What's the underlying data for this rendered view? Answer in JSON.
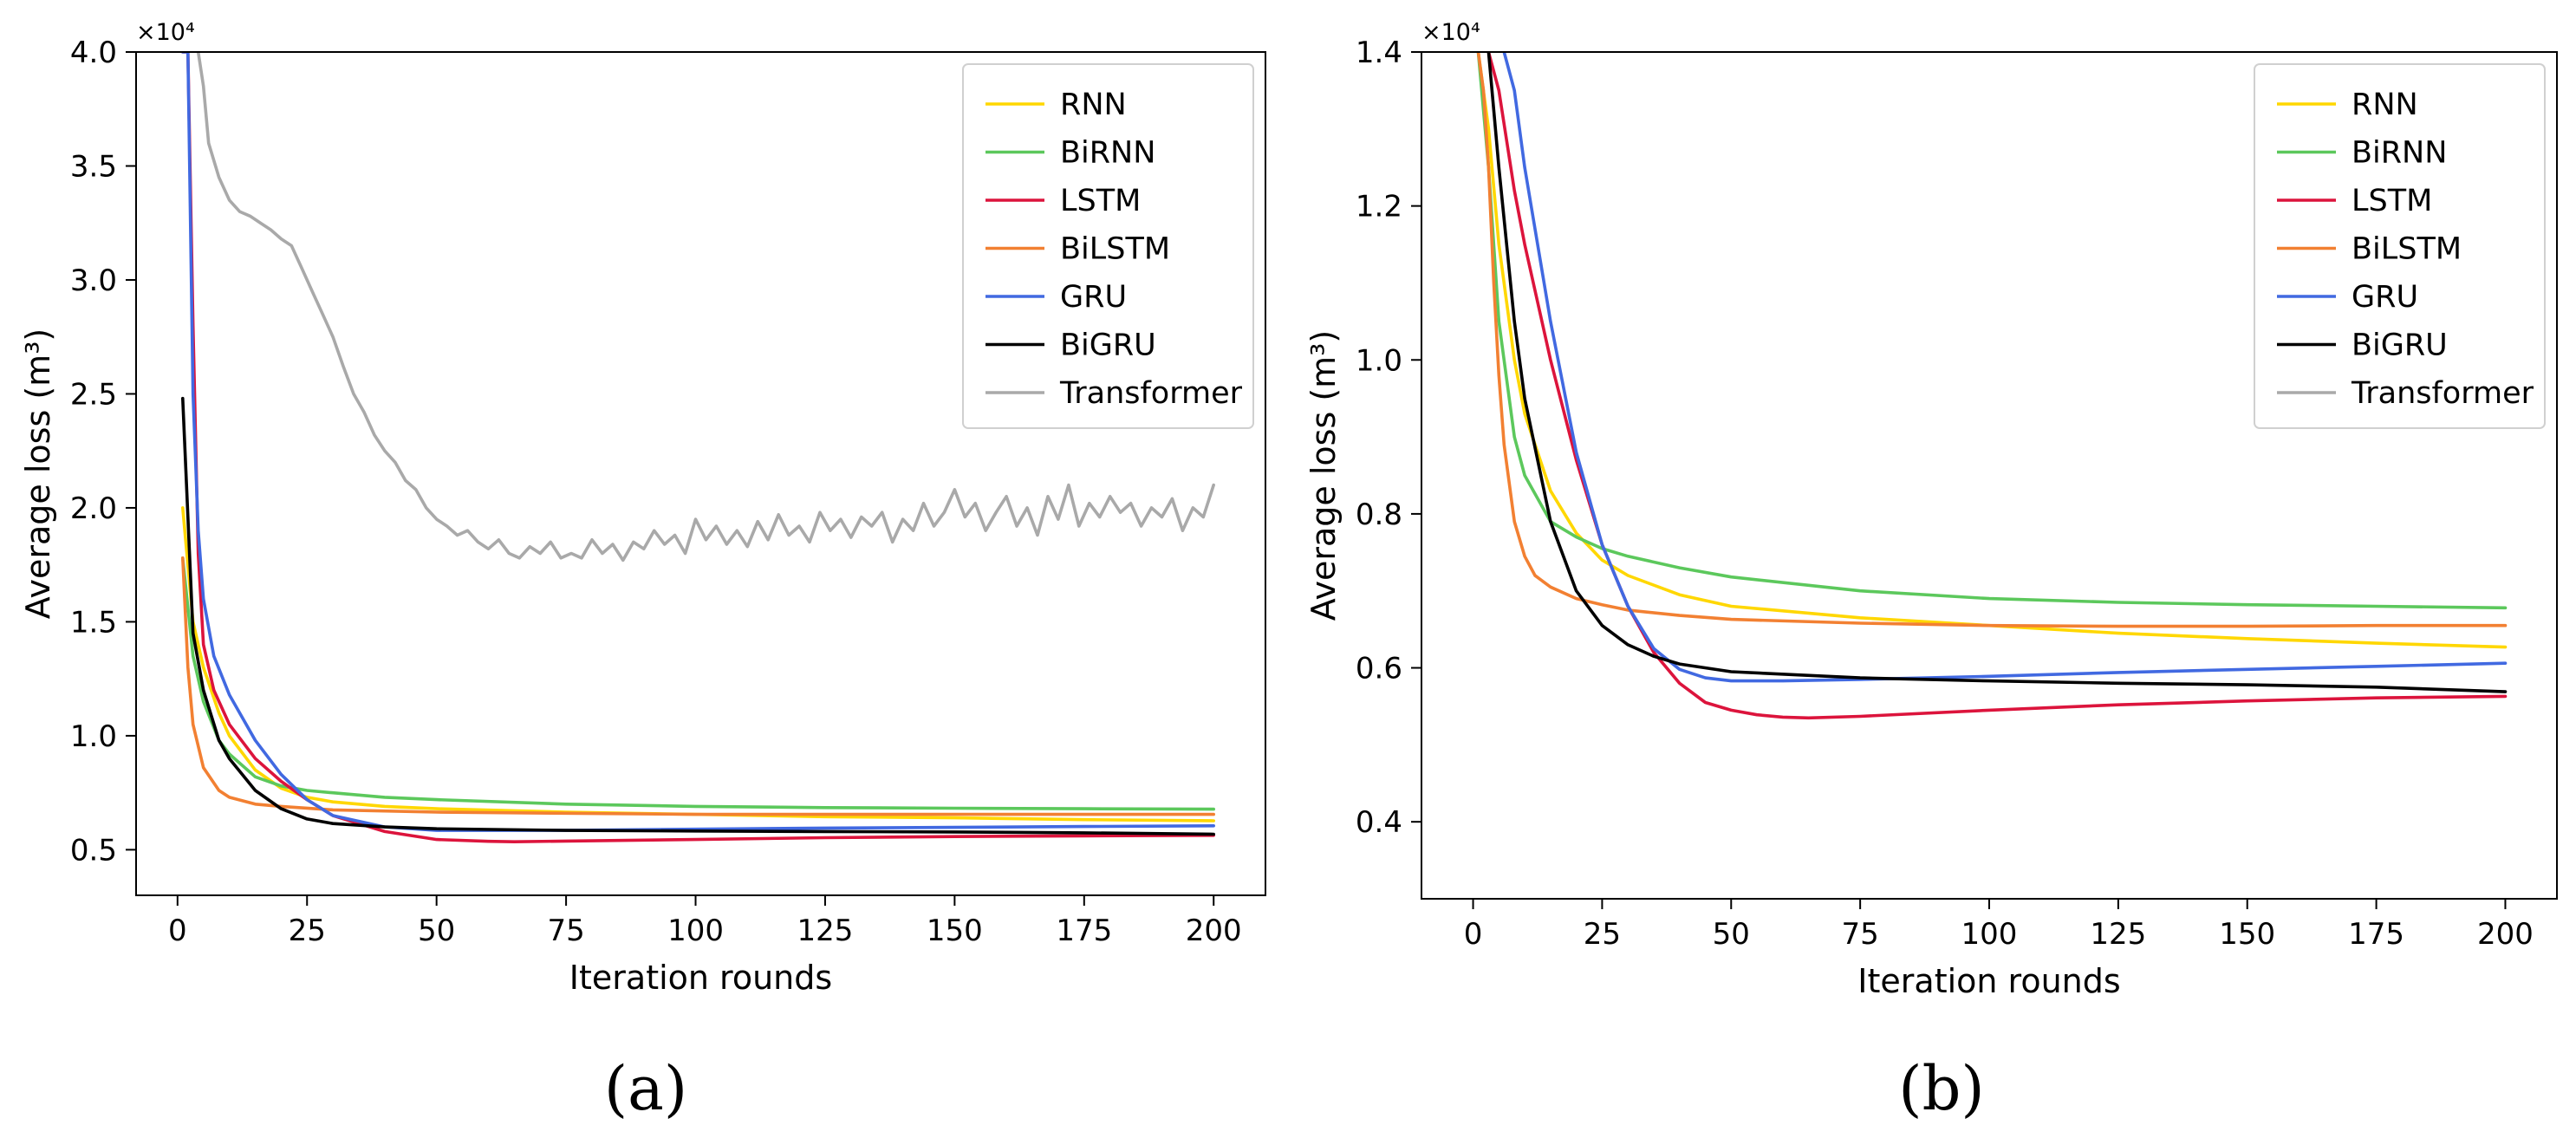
{
  "chart_data": [
    {
      "panel": "(a)",
      "type": "line",
      "title": "",
      "xlabel": "Iteration rounds",
      "ylabel": "Average loss (m³)",
      "y_multiplier": "×10⁴",
      "xlim": [
        -8,
        210
      ],
      "ylim": [
        0.3,
        4.0
      ],
      "xticks": [
        0,
        25,
        50,
        75,
        100,
        125,
        150,
        175,
        200
      ],
      "yticks": [
        0.5,
        1.0,
        1.5,
        2.0,
        2.5,
        3.0,
        3.5,
        4.0
      ],
      "ytick_labels": [
        "0.5",
        "1.0",
        "1.5",
        "2.0",
        "2.5",
        "3.0",
        "3.5",
        "4.0"
      ],
      "grid": false,
      "legend_position": "top-right",
      "series": [
        {
          "name": "RNN",
          "color": "#FFD700",
          "x": [
            1,
            3,
            5,
            8,
            10,
            15,
            20,
            25,
            30,
            40,
            50,
            75,
            100,
            125,
            150,
            175,
            200
          ],
          "y": [
            2.0,
            1.5,
            1.3,
            1.1,
            1.0,
            0.85,
            0.77,
            0.73,
            0.71,
            0.69,
            0.68,
            0.665,
            0.655,
            0.645,
            0.64,
            0.632,
            0.627
          ]
        },
        {
          "name": "BiRNN",
          "color": "#5CC85C",
          "x": [
            1,
            3,
            5,
            8,
            10,
            15,
            20,
            25,
            30,
            40,
            50,
            75,
            100,
            125,
            150,
            175,
            200
          ],
          "y": [
            1.78,
            1.35,
            1.15,
            0.98,
            0.92,
            0.82,
            0.78,
            0.76,
            0.75,
            0.73,
            0.72,
            0.7,
            0.69,
            0.685,
            0.682,
            0.68,
            0.678
          ]
        },
        {
          "name": "LSTM",
          "color": "#DC143C",
          "x": [
            1,
            2,
            3,
            4,
            5,
            7,
            10,
            15,
            20,
            25,
            30,
            40,
            50,
            60,
            65,
            75,
            100,
            125,
            150,
            175,
            200
          ],
          "y": [
            4.0,
            4.0,
            2.8,
            1.8,
            1.4,
            1.2,
            1.05,
            0.9,
            0.8,
            0.72,
            0.65,
            0.58,
            0.545,
            0.537,
            0.535,
            0.538,
            0.545,
            0.553,
            0.558,
            0.561,
            0.563
          ]
        },
        {
          "name": "BiLSTM",
          "color": "#F28032",
          "x": [
            1,
            2,
            3,
            5,
            8,
            10,
            15,
            20,
            30,
            50,
            75,
            100,
            125,
            150,
            175,
            200
          ],
          "y": [
            1.78,
            1.3,
            1.05,
            0.86,
            0.76,
            0.73,
            0.7,
            0.69,
            0.675,
            0.665,
            0.66,
            0.655,
            0.655,
            0.655,
            0.655,
            0.655
          ]
        },
        {
          "name": "GRU",
          "color": "#4169E1",
          "x": [
            1,
            2,
            3,
            4,
            5,
            7,
            10,
            15,
            20,
            25,
            30,
            40,
            50,
            60,
            75,
            100,
            125,
            150,
            175,
            200
          ],
          "y": [
            4.0,
            4.0,
            2.5,
            1.9,
            1.6,
            1.35,
            1.18,
            0.98,
            0.83,
            0.72,
            0.65,
            0.6,
            0.585,
            0.585,
            0.585,
            0.59,
            0.595,
            0.598,
            0.602,
            0.605
          ]
        },
        {
          "name": "BiGRU",
          "color": "#000000",
          "x": [
            1,
            3,
            5,
            8,
            10,
            15,
            20,
            25,
            30,
            40,
            50,
            75,
            100,
            125,
            150,
            175,
            200
          ],
          "y": [
            2.48,
            1.45,
            1.2,
            0.98,
            0.9,
            0.76,
            0.68,
            0.635,
            0.615,
            0.6,
            0.592,
            0.585,
            0.582,
            0.58,
            0.578,
            0.574,
            0.568
          ]
        },
        {
          "name": "Transformer",
          "color": "#A9A9A9",
          "x": [
            4,
            5,
            6,
            8,
            10,
            12,
            14,
            16,
            18,
            20,
            22,
            24,
            26,
            28,
            30,
            32,
            34,
            36,
            38,
            40,
            42,
            44,
            46,
            48,
            50,
            52,
            54,
            56,
            58,
            60,
            62,
            64,
            66,
            68,
            70,
            72,
            74,
            76,
            78,
            80,
            82,
            84,
            86,
            88,
            90,
            92,
            94,
            96,
            98,
            100,
            102,
            104,
            106,
            108,
            110,
            112,
            114,
            116,
            118,
            120,
            122,
            124,
            126,
            128,
            130,
            132,
            134,
            136,
            138,
            140,
            142,
            144,
            146,
            148,
            150,
            152,
            154,
            156,
            158,
            160,
            162,
            164,
            166,
            168,
            170,
            172,
            174,
            176,
            178,
            180,
            182,
            184,
            186,
            188,
            190,
            192,
            194,
            196,
            198,
            200
          ],
          "y": [
            4.0,
            3.85,
            3.6,
            3.45,
            3.35,
            3.3,
            3.28,
            3.25,
            3.22,
            3.18,
            3.15,
            3.05,
            2.95,
            2.85,
            2.75,
            2.62,
            2.5,
            2.42,
            2.32,
            2.25,
            2.2,
            2.12,
            2.08,
            2.0,
            1.95,
            1.92,
            1.88,
            1.9,
            1.85,
            1.82,
            1.86,
            1.8,
            1.78,
            1.83,
            1.8,
            1.85,
            1.78,
            1.8,
            1.78,
            1.86,
            1.8,
            1.84,
            1.77,
            1.85,
            1.82,
            1.9,
            1.84,
            1.88,
            1.8,
            1.95,
            1.86,
            1.92,
            1.84,
            1.9,
            1.83,
            1.94,
            1.86,
            1.97,
            1.88,
            1.92,
            1.85,
            1.98,
            1.9,
            1.95,
            1.87,
            1.96,
            1.92,
            1.98,
            1.85,
            1.95,
            1.9,
            2.02,
            1.92,
            1.98,
            2.08,
            1.96,
            2.02,
            1.9,
            1.98,
            2.05,
            1.92,
            2.0,
            1.88,
            2.05,
            1.95,
            2.1,
            1.92,
            2.02,
            1.96,
            2.05,
            1.98,
            2.02,
            1.92,
            2.0,
            1.96,
            2.04,
            1.9,
            2.0,
            1.96,
            2.1
          ]
        }
      ]
    },
    {
      "panel": "(b)",
      "type": "line",
      "title": "",
      "xlabel": "Iteration rounds",
      "ylabel": "Average loss (m³)",
      "y_multiplier": "×10⁴",
      "xlim": [
        -10,
        210
      ],
      "ylim": [
        0.3,
        1.4
      ],
      "xticks": [
        0,
        25,
        50,
        75,
        100,
        125,
        150,
        175,
        200
      ],
      "yticks": [
        0.4,
        0.6,
        0.8,
        1.0,
        1.2,
        1.4
      ],
      "ytick_labels": [
        "0.4",
        "0.6",
        "0.8",
        "1.0",
        "1.2",
        "1.4"
      ],
      "grid": false,
      "legend_position": "top-right",
      "series": [
        {
          "name": "RNN",
          "color": "#FFD700",
          "x": [
            1,
            3,
            5,
            8,
            10,
            15,
            20,
            25,
            30,
            40,
            50,
            75,
            100,
            125,
            150,
            175,
            200
          ],
          "y": [
            1.4,
            1.3,
            1.15,
            1.0,
            0.93,
            0.83,
            0.775,
            0.74,
            0.72,
            0.695,
            0.68,
            0.665,
            0.655,
            0.645,
            0.638,
            0.632,
            0.627
          ]
        },
        {
          "name": "BiRNN",
          "color": "#5CC85C",
          "x": [
            1,
            3,
            5,
            8,
            10,
            15,
            20,
            25,
            30,
            40,
            50,
            75,
            100,
            125,
            150,
            175,
            200
          ],
          "y": [
            1.4,
            1.25,
            1.05,
            0.9,
            0.85,
            0.79,
            0.77,
            0.755,
            0.745,
            0.73,
            0.718,
            0.7,
            0.69,
            0.685,
            0.682,
            0.68,
            0.678
          ]
        },
        {
          "name": "LSTM",
          "color": "#DC143C",
          "x": [
            3,
            5,
            8,
            10,
            15,
            20,
            25,
            30,
            35,
            40,
            45,
            50,
            55,
            60,
            65,
            75,
            100,
            125,
            150,
            175,
            200
          ],
          "y": [
            1.4,
            1.35,
            1.22,
            1.15,
            1.0,
            0.87,
            0.76,
            0.68,
            0.62,
            0.58,
            0.555,
            0.545,
            0.539,
            0.536,
            0.535,
            0.537,
            0.545,
            0.552,
            0.557,
            0.561,
            0.563
          ]
        },
        {
          "name": "BiLSTM",
          "color": "#F28032",
          "x": [
            1,
            2,
            3,
            4,
            5,
            6,
            8,
            10,
            12,
            15,
            20,
            25,
            30,
            40,
            50,
            75,
            100,
            125,
            150,
            175,
            200
          ],
          "y": [
            1.4,
            1.35,
            1.25,
            1.1,
            0.98,
            0.89,
            0.79,
            0.745,
            0.72,
            0.705,
            0.69,
            0.682,
            0.675,
            0.668,
            0.663,
            0.658,
            0.655,
            0.654,
            0.654,
            0.655,
            0.655
          ]
        },
        {
          "name": "GRU",
          "color": "#4169E1",
          "x": [
            6,
            8,
            10,
            15,
            20,
            25,
            30,
            35,
            40,
            45,
            50,
            60,
            75,
            100,
            125,
            150,
            175,
            200
          ],
          "y": [
            1.4,
            1.35,
            1.25,
            1.05,
            0.88,
            0.76,
            0.68,
            0.625,
            0.598,
            0.587,
            0.583,
            0.583,
            0.585,
            0.589,
            0.594,
            0.598,
            0.602,
            0.606
          ]
        },
        {
          "name": "BiGRU",
          "color": "#000000",
          "x": [
            3,
            5,
            8,
            10,
            15,
            20,
            25,
            30,
            35,
            40,
            50,
            75,
            100,
            125,
            150,
            175,
            200
          ],
          "y": [
            1.4,
            1.25,
            1.05,
            0.95,
            0.79,
            0.7,
            0.655,
            0.63,
            0.615,
            0.605,
            0.595,
            0.587,
            0.583,
            0.58,
            0.578,
            0.575,
            0.569
          ]
        },
        {
          "name": "Transformer",
          "color": "#A9A9A9",
          "x": [],
          "y": []
        }
      ]
    }
  ]
}
